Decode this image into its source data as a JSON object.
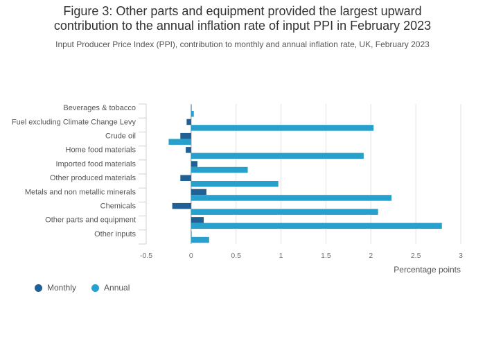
{
  "chart_data": {
    "type": "bar",
    "orientation": "horizontal",
    "title_lines": [
      "Figure 3: Other parts and equipment provided the largest upward",
      "contribution to the annual inflation rate of input PPI in February 2023"
    ],
    "subtitle": "Input Producer Price Index (PPI), contribution to monthly and annual inflation rate, UK, February 2023",
    "xlabel": "Percentage points",
    "xlim": [
      -0.5,
      3
    ],
    "xticks": [
      -0.5,
      0,
      0.5,
      1,
      1.5,
      2,
      2.5,
      3
    ],
    "xtick_labels": [
      "-0.5",
      "0",
      "0.5",
      "1",
      "1.5",
      "2",
      "2.5",
      "3"
    ],
    "categories": [
      "Beverages & tobacco",
      "Fuel excluding Climate Change Levy",
      "Crude oil",
      "Home food materials",
      "Imported food materials",
      "Other produced materials",
      "Metals and non metallic minerals",
      "Chemicals",
      "Other parts and equipment",
      "Other inputs"
    ],
    "series": [
      {
        "name": "Monthly",
        "color": "#206095",
        "values": [
          0.0,
          -0.05,
          -0.12,
          -0.06,
          0.07,
          -0.12,
          0.17,
          -0.21,
          0.14,
          0.0
        ]
      },
      {
        "name": "Annual",
        "color": "#27a0cc",
        "values": [
          0.03,
          2.03,
          -0.25,
          1.92,
          0.63,
          0.97,
          2.23,
          2.08,
          2.79,
          0.2
        ]
      }
    ],
    "grid": true,
    "legend_position": "bottom-left"
  }
}
